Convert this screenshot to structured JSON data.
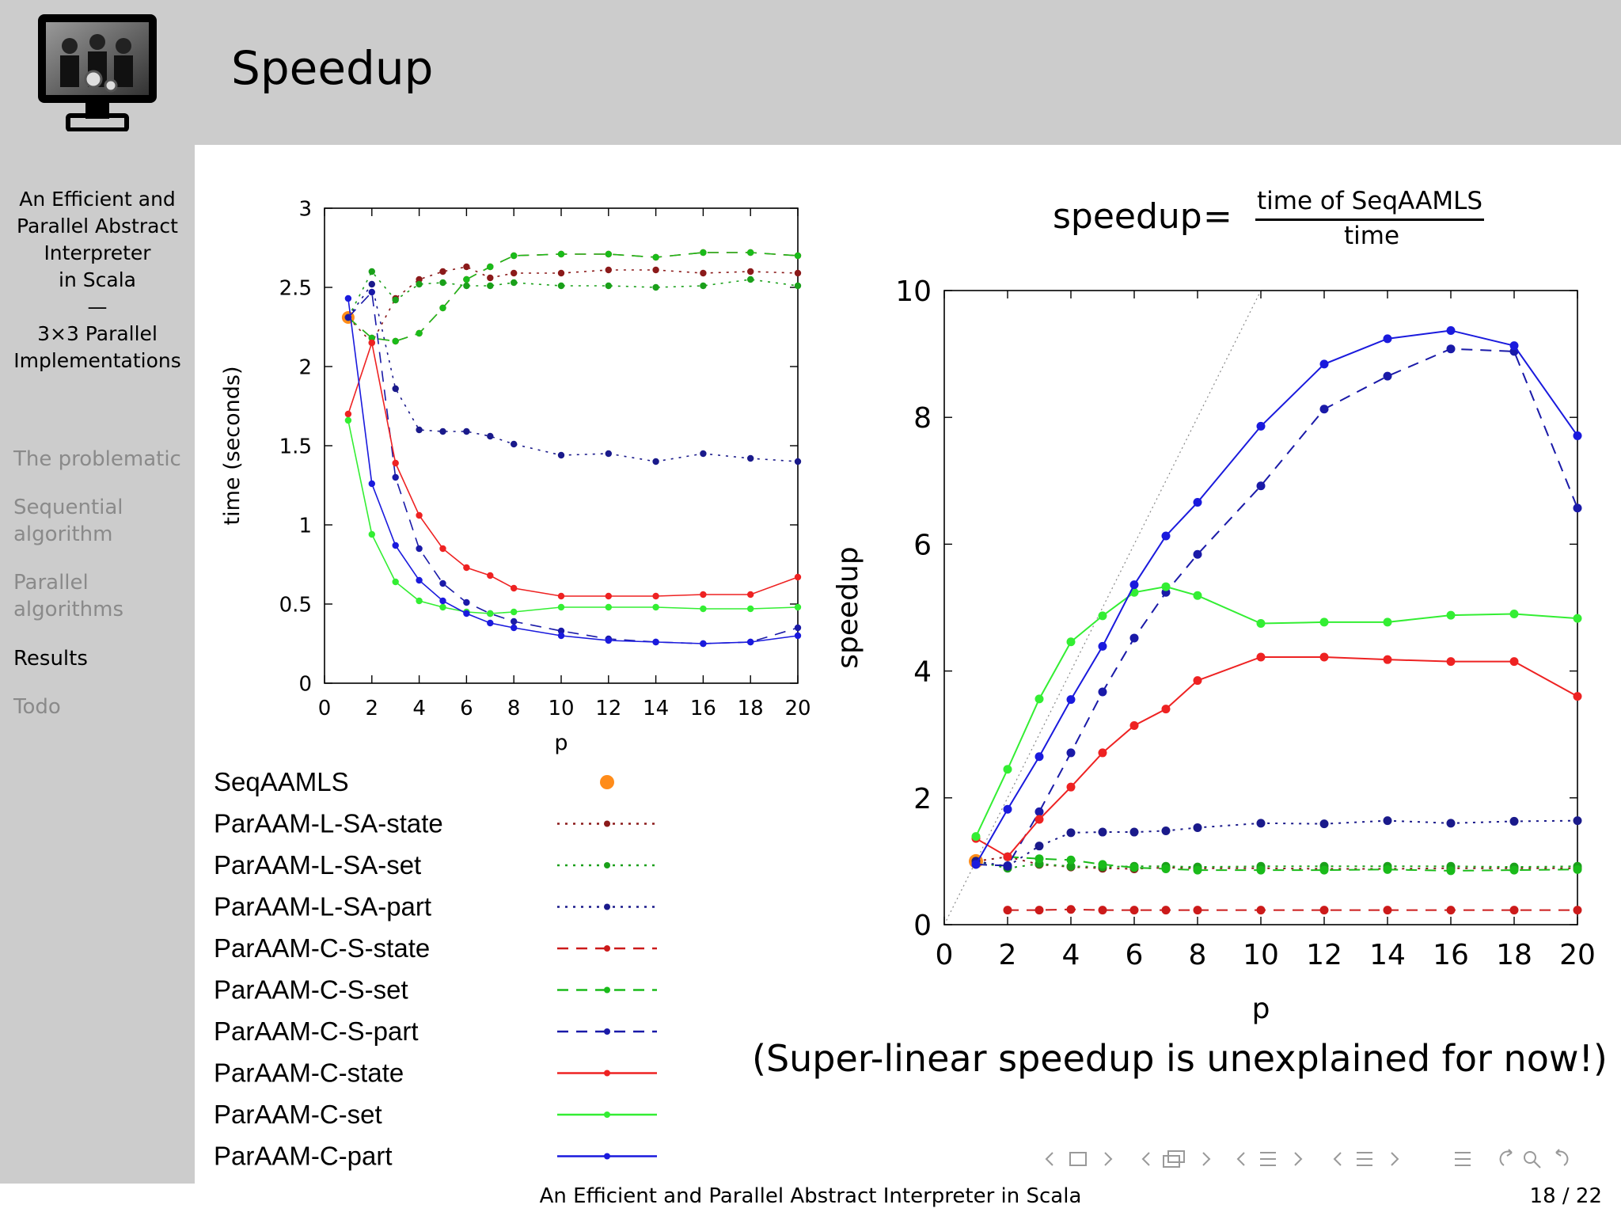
{
  "slide": {
    "title": "Speedup",
    "footer_title": "An Efficient and Parallel Abstract Interpreter in Scala",
    "page_number": "18 / 22",
    "note": "(Super-linear speedup is unexplained for now!)",
    "formula": {
      "lhs": "speedup",
      "eq": "=",
      "numerator": "time of SeqAAMLS",
      "denominator": "time"
    }
  },
  "sidebar": {
    "heading_lines": [
      "An Efficient and",
      "Parallel Abstract",
      "Interpreter",
      "in Scala",
      "—",
      "3×3 Parallel",
      "Implementations"
    ],
    "items": [
      {
        "label": "The problematic",
        "active": false
      },
      {
        "label": "Sequential algorithm",
        "lines": [
          "Sequential",
          "algorithm"
        ],
        "active": false
      },
      {
        "label": "Parallel algorithms",
        "lines": [
          "Parallel",
          "algorithms"
        ],
        "active": false
      },
      {
        "label": "Results",
        "active": true
      },
      {
        "label": "Todo",
        "active": false
      }
    ]
  },
  "legend": [
    {
      "name": "SeqAAMLS",
      "color": "#ff8c1a",
      "dash": "point"
    },
    {
      "name": "ParAAM-L-SA-state",
      "color": "#8b1a1a",
      "dash": "dotted"
    },
    {
      "name": "ParAAM-L-SA-set",
      "color": "#1aa01a",
      "dash": "dotted"
    },
    {
      "name": "ParAAM-L-SA-part",
      "color": "#1a1a8b",
      "dash": "dotted"
    },
    {
      "name": "ParAAM-C-S-state",
      "color": "#cc1a1a",
      "dash": "dashed"
    },
    {
      "name": "ParAAM-C-S-set",
      "color": "#1abb1a",
      "dash": "dashed"
    },
    {
      "name": "ParAAM-C-S-part",
      "color": "#1a1aa8",
      "dash": "dashed"
    },
    {
      "name": "ParAAM-C-state",
      "color": "#ee2222",
      "dash": "solid"
    },
    {
      "name": "ParAAM-C-set",
      "color": "#33ee33",
      "dash": "solid"
    },
    {
      "name": "ParAAM-C-part",
      "color": "#1a1add",
      "dash": "solid"
    }
  ],
  "chart_data": [
    {
      "type": "line",
      "title": "",
      "xlabel": "p",
      "ylabel": "time (seconds)",
      "xlim": [
        0,
        20
      ],
      "ylim": [
        0,
        3
      ],
      "xticks": [
        0,
        2,
        4,
        6,
        8,
        10,
        12,
        14,
        16,
        18,
        20
      ],
      "yticks": [
        0,
        0.5,
        1,
        1.5,
        2,
        2.5,
        3
      ],
      "ytick_labels": [
        "0",
        "0.5",
        "1",
        "1.5",
        "2",
        "2.5",
        "3"
      ],
      "series": [
        {
          "name": "SeqAAMLS",
          "color": "#ff8c1a",
          "dash": "point",
          "x": [
            1
          ],
          "y": [
            2.31
          ]
        },
        {
          "name": "ParAAM-L-SA-state",
          "color": "#8b1a1a",
          "dash": "dotted",
          "x": [
            1,
            2,
            3,
            4,
            5,
            6,
            7,
            8,
            10,
            12,
            14,
            16,
            18,
            20
          ],
          "y": [
            2.31,
            2.15,
            2.43,
            2.55,
            2.6,
            2.63,
            2.56,
            2.59,
            2.59,
            2.61,
            2.61,
            2.59,
            2.6,
            2.59
          ]
        },
        {
          "name": "ParAAM-L-SA-set",
          "color": "#1aa01a",
          "dash": "dotted",
          "x": [
            1,
            2,
            3,
            4,
            5,
            6,
            7,
            8,
            10,
            12,
            14,
            16,
            18,
            20
          ],
          "y": [
            2.31,
            2.6,
            2.42,
            2.52,
            2.53,
            2.51,
            2.51,
            2.53,
            2.51,
            2.51,
            2.5,
            2.51,
            2.55,
            2.51
          ]
        },
        {
          "name": "ParAAM-L-SA-part",
          "color": "#1a1a8b",
          "dash": "dotted",
          "x": [
            1,
            2,
            3,
            4,
            5,
            6,
            7,
            8,
            10,
            12,
            14,
            16,
            18,
            20
          ],
          "y": [
            2.31,
            2.52,
            1.86,
            1.6,
            1.59,
            1.59,
            1.56,
            1.51,
            1.44,
            1.45,
            1.4,
            1.45,
            1.42,
            1.4
          ]
        },
        {
          "name": "ParAAM-C-S-state",
          "color": "#cc1a1a",
          "dash": "dashed",
          "x": [
            1,
            2,
            3,
            4,
            5,
            6,
            7,
            8,
            10,
            12,
            14,
            16,
            18,
            20
          ],
          "y": [
            2.31,
            2.18,
            2.16,
            2.21,
            2.37,
            2.55,
            2.63,
            2.7,
            2.71,
            2.71,
            2.69,
            2.72,
            2.72,
            2.7
          ]
        },
        {
          "name": "ParAAM-C-S-set",
          "color": "#1abb1a",
          "dash": "dashed",
          "x": [
            1,
            2,
            3,
            4,
            5,
            6,
            7,
            8,
            10,
            12,
            14,
            16,
            18,
            20
          ],
          "y": [
            2.31,
            2.18,
            2.16,
            2.21,
            2.37,
            2.55,
            2.63,
            2.7,
            2.71,
            2.71,
            2.69,
            2.72,
            2.72,
            2.7
          ]
        },
        {
          "name": "ParAAM-C-S-part",
          "color": "#1a1aa8",
          "dash": "dashed",
          "x": [
            1,
            2,
            3,
            4,
            5,
            6,
            7,
            8,
            10,
            12,
            14,
            16,
            18,
            20
          ],
          "y": [
            2.31,
            2.47,
            1.3,
            0.85,
            0.63,
            0.51,
            0.44,
            0.39,
            0.33,
            0.28,
            0.26,
            0.25,
            0.26,
            0.35
          ]
        },
        {
          "name": "ParAAM-C-state",
          "color": "#ee2222",
          "dash": "solid",
          "x": [
            1,
            2,
            3,
            4,
            5,
            6,
            7,
            8,
            10,
            12,
            14,
            16,
            18,
            20
          ],
          "y": [
            1.7,
            2.15,
            1.39,
            1.06,
            0.85,
            0.73,
            0.68,
            0.6,
            0.55,
            0.55,
            0.55,
            0.56,
            0.56,
            0.67
          ]
        },
        {
          "name": "ParAAM-C-set",
          "color": "#33ee33",
          "dash": "solid",
          "x": [
            1,
            2,
            3,
            4,
            5,
            6,
            7,
            8,
            10,
            12,
            14,
            16,
            18,
            20
          ],
          "y": [
            1.66,
            0.94,
            0.64,
            0.52,
            0.48,
            0.45,
            0.44,
            0.45,
            0.48,
            0.48,
            0.48,
            0.47,
            0.47,
            0.48
          ]
        },
        {
          "name": "ParAAM-C-part",
          "color": "#1a1add",
          "dash": "solid",
          "x": [
            1,
            2,
            3,
            4,
            5,
            6,
            7,
            8,
            10,
            12,
            14,
            16,
            18,
            20
          ],
          "y": [
            2.43,
            1.26,
            0.87,
            0.65,
            0.52,
            0.44,
            0.38,
            0.35,
            0.3,
            0.27,
            0.26,
            0.25,
            0.26,
            0.3
          ]
        }
      ]
    },
    {
      "type": "line",
      "title": "",
      "xlabel": "p",
      "ylabel": "speedup",
      "xlim": [
        0,
        20
      ],
      "ylim": [
        0,
        10
      ],
      "xticks": [
        0,
        2,
        4,
        6,
        8,
        10,
        12,
        14,
        16,
        18,
        20
      ],
      "yticks": [
        0,
        2,
        4,
        6,
        8,
        10
      ],
      "ytick_labels": [
        "0",
        "2",
        "4",
        "6",
        "8",
        "10"
      ],
      "reference_line": "ideal linear speedup (dotted gray)",
      "series": [
        {
          "name": "SeqAAMLS",
          "color": "#ff8c1a",
          "dash": "point",
          "x": [
            1
          ],
          "y": [
            1.0
          ]
        },
        {
          "name": "ParAAM-L-SA-state",
          "color": "#8b1a1a",
          "dash": "dotted",
          "x": [
            1,
            2,
            3,
            4,
            5,
            6,
            7,
            8,
            10,
            12,
            14,
            16,
            18,
            20
          ],
          "y": [
            1.0,
            1.07,
            0.95,
            0.91,
            0.89,
            0.88,
            0.9,
            0.89,
            0.89,
            0.88,
            0.88,
            0.89,
            0.89,
            0.89
          ]
        },
        {
          "name": "ParAAM-L-SA-set",
          "color": "#1aa01a",
          "dash": "dotted",
          "x": [
            1,
            2,
            3,
            4,
            5,
            6,
            7,
            8,
            10,
            12,
            14,
            16,
            18,
            20
          ],
          "y": [
            1.0,
            0.89,
            0.96,
            0.92,
            0.91,
            0.92,
            0.92,
            0.91,
            0.92,
            0.92,
            0.92,
            0.92,
            0.91,
            0.92
          ]
        },
        {
          "name": "ParAAM-L-SA-part",
          "color": "#1a1a8b",
          "dash": "dotted",
          "x": [
            1,
            2,
            3,
            4,
            5,
            6,
            7,
            8,
            10,
            12,
            14,
            16,
            18,
            20
          ],
          "y": [
            1.0,
            0.92,
            1.24,
            1.45,
            1.46,
            1.46,
            1.48,
            1.53,
            1.6,
            1.59,
            1.64,
            1.6,
            1.63,
            1.64
          ]
        },
        {
          "name": "ParAAM-C-S-state",
          "color": "#cc1a1a",
          "dash": "dashed",
          "x": [
            2,
            3,
            4,
            5,
            6,
            7,
            8,
            10,
            12,
            14,
            16,
            18,
            20
          ],
          "y": [
            0.23,
            0.23,
            0.24,
            0.23,
            0.23,
            0.23,
            0.23,
            0.23,
            0.23,
            0.23,
            0.23,
            0.23,
            0.23
          ]
        },
        {
          "name": "ParAAM-C-S-set",
          "color": "#1abb1a",
          "dash": "dashed",
          "x": [
            2,
            3,
            4,
            5,
            6,
            7,
            8,
            10,
            12,
            14,
            16,
            18,
            20
          ],
          "y": [
            1.07,
            1.04,
            1.02,
            0.95,
            0.9,
            0.88,
            0.86,
            0.86,
            0.86,
            0.87,
            0.85,
            0.86,
            0.87
          ]
        },
        {
          "name": "ParAAM-C-S-part",
          "color": "#1a1aa8",
          "dash": "dashed",
          "x": [
            1,
            2,
            3,
            4,
            5,
            6,
            7,
            8,
            10,
            12,
            14,
            16,
            18,
            20
          ],
          "y": [
            0.95,
            0.93,
            1.78,
            2.71,
            3.67,
            4.52,
            5.24,
            5.84,
            6.92,
            8.13,
            8.65,
            9.08,
            9.04,
            6.57
          ]
        },
        {
          "name": "ParAAM-C-state",
          "color": "#ee2222",
          "dash": "solid",
          "x": [
            1,
            2,
            3,
            4,
            5,
            6,
            7,
            8,
            10,
            12,
            14,
            16,
            18,
            20
          ],
          "y": [
            1.36,
            1.07,
            1.66,
            2.17,
            2.71,
            3.14,
            3.4,
            3.85,
            4.22,
            4.22,
            4.18,
            4.15,
            4.15,
            3.6
          ]
        },
        {
          "name": "ParAAM-C-set",
          "color": "#33ee33",
          "dash": "solid",
          "x": [
            1,
            2,
            3,
            4,
            5,
            6,
            7,
            8,
            10,
            12,
            14,
            16,
            18,
            20
          ],
          "y": [
            1.39,
            2.45,
            3.56,
            4.46,
            4.87,
            5.24,
            5.33,
            5.19,
            4.75,
            4.77,
            4.77,
            4.88,
            4.9,
            4.83
          ]
        },
        {
          "name": "ParAAM-C-part",
          "color": "#1a1add",
          "dash": "solid",
          "x": [
            1,
            2,
            3,
            4,
            5,
            6,
            7,
            8,
            10,
            12,
            14,
            16,
            18,
            20
          ],
          "y": [
            0.95,
            1.82,
            2.65,
            3.55,
            4.39,
            5.36,
            6.13,
            6.66,
            7.86,
            8.84,
            9.24,
            9.37,
            9.13,
            7.71
          ]
        }
      ]
    }
  ]
}
